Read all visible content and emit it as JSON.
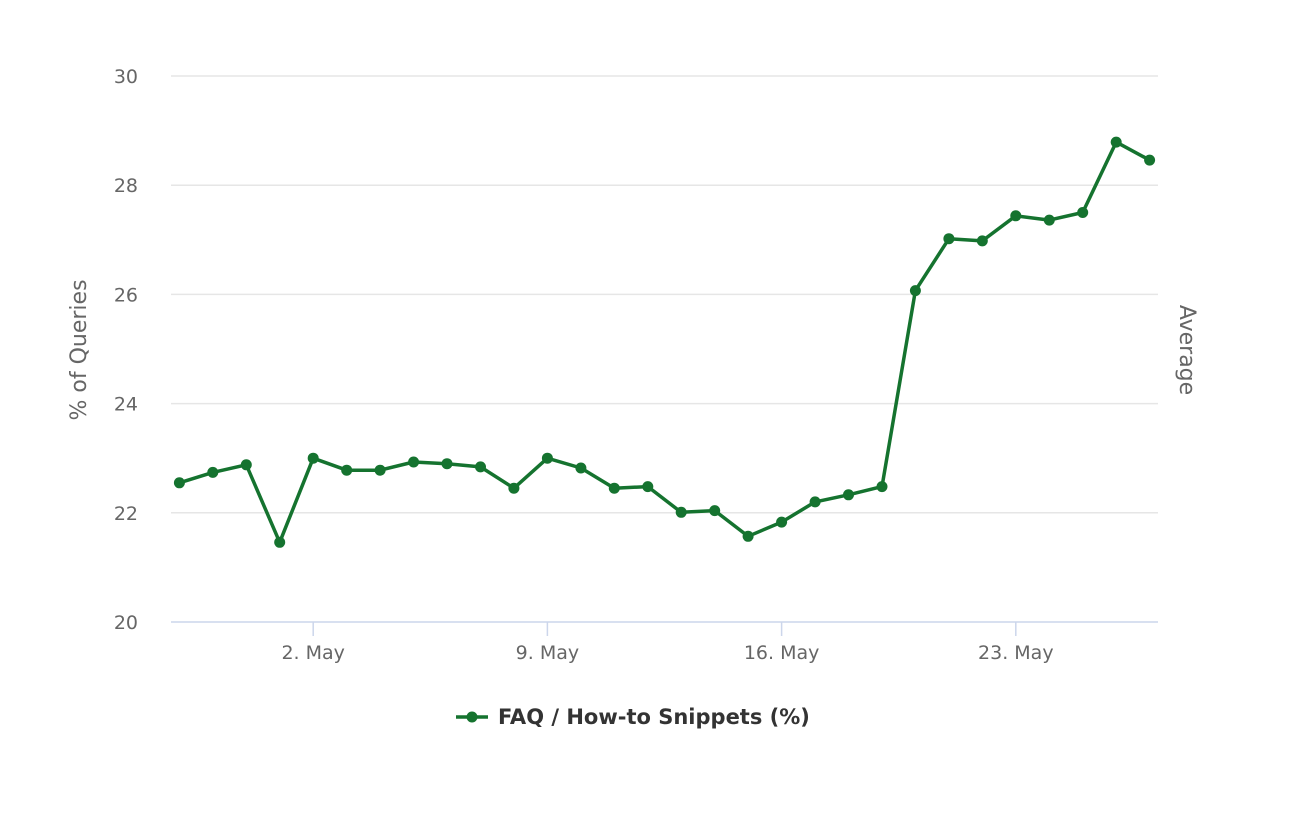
{
  "chart_data": {
    "type": "line",
    "ylabel": "% of Queries",
    "ylabel_right": "Average",
    "ylim": [
      20,
      30
    ],
    "yticks": [
      "20",
      "22",
      "24",
      "26",
      "28",
      "30"
    ],
    "xticks": [
      {
        "date": "2023-05-02",
        "label": "2. May"
      },
      {
        "date": "2023-05-09",
        "label": "9. May"
      },
      {
        "date": "2023-05-16",
        "label": "16. May"
      },
      {
        "date": "2023-05-23",
        "label": "23. May"
      }
    ],
    "x_range": [
      "2023-04-28",
      "2023-05-27"
    ],
    "grid": true,
    "legend_position": "bottom-center",
    "series": [
      {
        "name": "FAQ / How-to Snippets (%)",
        "color": "#15732f",
        "points": [
          {
            "x": "2023-04-28",
            "y": 22.55
          },
          {
            "x": "2023-04-29",
            "y": 22.74
          },
          {
            "x": "2023-04-30",
            "y": 22.88
          },
          {
            "x": "2023-05-01",
            "y": 21.46
          },
          {
            "x": "2023-05-02",
            "y": 23.0
          },
          {
            "x": "2023-05-03",
            "y": 22.78
          },
          {
            "x": "2023-05-04",
            "y": 22.78
          },
          {
            "x": "2023-05-05",
            "y": 22.93
          },
          {
            "x": "2023-05-06",
            "y": 22.9
          },
          {
            "x": "2023-05-07",
            "y": 22.84
          },
          {
            "x": "2023-05-08",
            "y": 22.45
          },
          {
            "x": "2023-05-09",
            "y": 23.0
          },
          {
            "x": "2023-05-10",
            "y": 22.82
          },
          {
            "x": "2023-05-11",
            "y": 22.45
          },
          {
            "x": "2023-05-12",
            "y": 22.48
          },
          {
            "x": "2023-05-13",
            "y": 22.01
          },
          {
            "x": "2023-05-14",
            "y": 22.04
          },
          {
            "x": "2023-05-15",
            "y": 21.57
          },
          {
            "x": "2023-05-16",
            "y": 21.83
          },
          {
            "x": "2023-05-17",
            "y": 22.2
          },
          {
            "x": "2023-05-18",
            "y": 22.33
          },
          {
            "x": "2023-05-19",
            "y": 22.48
          },
          {
            "x": "2023-05-20",
            "y": 26.07
          },
          {
            "x": "2023-05-21",
            "y": 27.02
          },
          {
            "x": "2023-05-22",
            "y": 26.98
          },
          {
            "x": "2023-05-23",
            "y": 27.44
          },
          {
            "x": "2023-05-24",
            "y": 27.36
          },
          {
            "x": "2023-05-25",
            "y": 27.5
          },
          {
            "x": "2023-05-26",
            "y": 28.79
          },
          {
            "x": "2023-05-27",
            "y": 28.46
          }
        ]
      }
    ]
  }
}
